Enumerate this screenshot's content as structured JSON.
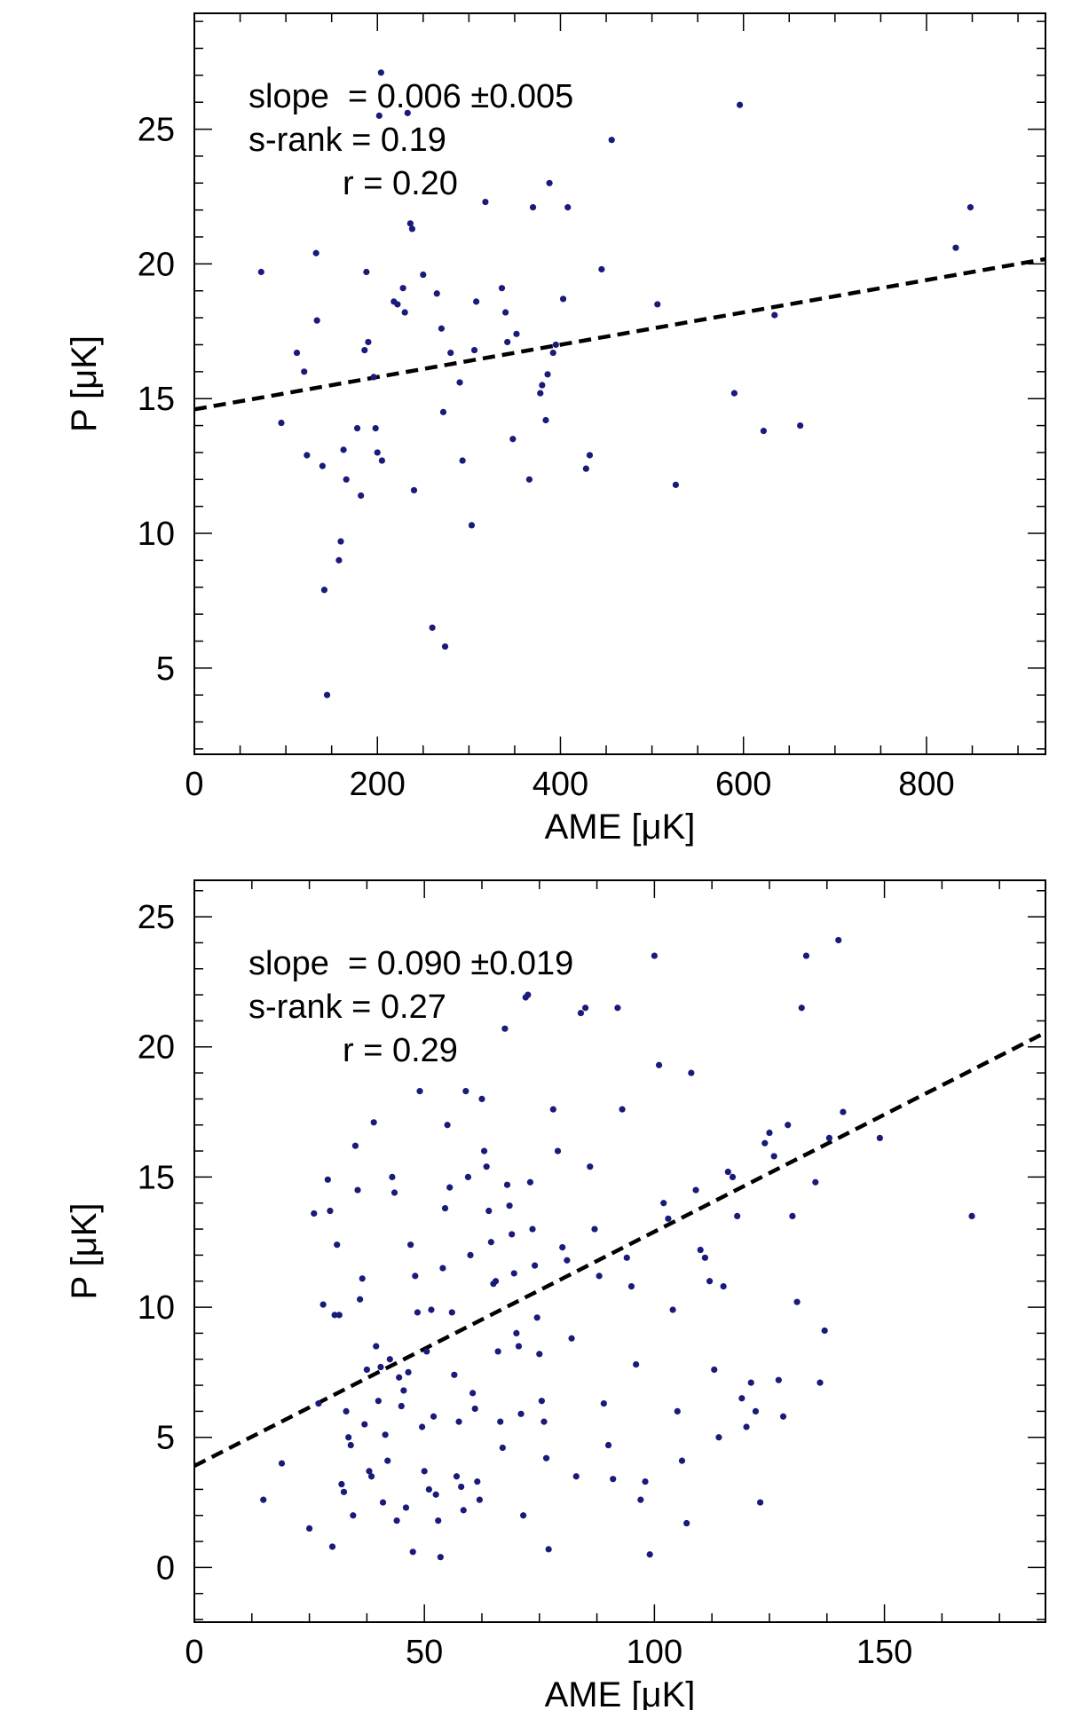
{
  "chart_data": [
    {
      "type": "scatter",
      "xlabel": "AME [μK]",
      "ylabel": "P [μK]",
      "xlim": [
        0,
        930
      ],
      "ylim": [
        1.8,
        29.3
      ],
      "xticks": [
        0,
        200,
        400,
        600,
        800
      ],
      "yticks": [
        5,
        10,
        15,
        20,
        25
      ],
      "annotations": [
        "slope  = 0.006 ±0.005",
        "s-rank = 0.19",
        "r = 0.20"
      ],
      "fit": {
        "slope": 0.006,
        "slope_err": 0.005,
        "intercept": 14.6
      },
      "marker_color": "#1a1a7a",
      "series": [
        {
          "name": "points",
          "points": [
            [
              73,
              19.7
            ],
            [
              95,
              14.1
            ],
            [
              112,
              16.7
            ],
            [
              120,
              16.0
            ],
            [
              123,
              12.9
            ],
            [
              133,
              20.4
            ],
            [
              134,
              17.9
            ],
            [
              140,
              12.5
            ],
            [
              142,
              7.9
            ],
            [
              145,
              4.0
            ],
            [
              158,
              9.0
            ],
            [
              160,
              9.7
            ],
            [
              163,
              13.1
            ],
            [
              166,
              12.0
            ],
            [
              178,
              13.9
            ],
            [
              182,
              11.4
            ],
            [
              186,
              16.8
            ],
            [
              188,
              19.7
            ],
            [
              190,
              17.1
            ],
            [
              196,
              15.8
            ],
            [
              198,
              13.9
            ],
            [
              200,
              13.0
            ],
            [
              202,
              25.5
            ],
            [
              204,
              27.1
            ],
            [
              205,
              12.7
            ],
            [
              218,
              18.6
            ],
            [
              222,
              18.5
            ],
            [
              228,
              19.1
            ],
            [
              230,
              18.2
            ],
            [
              233,
              25.6
            ],
            [
              236,
              21.5
            ],
            [
              238,
              21.3
            ],
            [
              240,
              11.6
            ],
            [
              250,
              19.6
            ],
            [
              260,
              6.5
            ],
            [
              265,
              18.9
            ],
            [
              270,
              17.6
            ],
            [
              272,
              14.5
            ],
            [
              274,
              5.8
            ],
            [
              280,
              16.7
            ],
            [
              290,
              15.6
            ],
            [
              293,
              12.7
            ],
            [
              303,
              10.3
            ],
            [
              306,
              16.8
            ],
            [
              308,
              18.6
            ],
            [
              318,
              22.3
            ],
            [
              336,
              19.1
            ],
            [
              340,
              18.2
            ],
            [
              342,
              17.1
            ],
            [
              348,
              13.5
            ],
            [
              352,
              17.4
            ],
            [
              366,
              12.0
            ],
            [
              370,
              22.1
            ],
            [
              378,
              15.2
            ],
            [
              380,
              15.5
            ],
            [
              384,
              14.2
            ],
            [
              386,
              15.9
            ],
            [
              388,
              23.0
            ],
            [
              392,
              16.7
            ],
            [
              395,
              17.0
            ],
            [
              403,
              18.7
            ],
            [
              408,
              22.1
            ],
            [
              428,
              12.4
            ],
            [
              432,
              12.9
            ],
            [
              445,
              19.8
            ],
            [
              456,
              24.6
            ],
            [
              506,
              18.5
            ],
            [
              526,
              11.8
            ],
            [
              590,
              15.2
            ],
            [
              596,
              25.9
            ],
            [
              622,
              13.8
            ],
            [
              634,
              18.1
            ],
            [
              662,
              14.0
            ],
            [
              832,
              20.6
            ],
            [
              848,
              22.1
            ]
          ]
        }
      ]
    },
    {
      "type": "scatter",
      "xlabel": "AME [μK]",
      "ylabel": "P [μK]",
      "xlim": [
        0,
        185
      ],
      "ylim": [
        -2.1,
        26.4
      ],
      "xticks": [
        0,
        50,
        100,
        150
      ],
      "yticks": [
        0,
        5,
        10,
        15,
        20,
        25
      ],
      "annotations": [
        "slope  = 0.090 ±0.019",
        "s-rank = 0.27",
        "r = 0.29"
      ],
      "fit": {
        "slope": 0.09,
        "slope_err": 0.019,
        "intercept": 3.9
      },
      "marker_color": "#1a1a7a",
      "series": [
        {
          "name": "points",
          "points": [
            [
              15,
              2.6
            ],
            [
              19,
              4.0
            ],
            [
              25,
              1.5
            ],
            [
              26,
              13.6
            ],
            [
              27,
              6.3
            ],
            [
              28,
              10.1
            ],
            [
              29,
              14.9
            ],
            [
              29.5,
              13.7
            ],
            [
              30,
              0.8
            ],
            [
              30.5,
              9.7
            ],
            [
              31,
              12.4
            ],
            [
              31.5,
              9.7
            ],
            [
              32,
              3.2
            ],
            [
              32.5,
              2.9
            ],
            [
              33,
              6.0
            ],
            [
              33.5,
              5.0
            ],
            [
              34,
              4.7
            ],
            [
              34.5,
              2.0
            ],
            [
              35,
              16.2
            ],
            [
              35.5,
              14.5
            ],
            [
              36,
              10.3
            ],
            [
              36.5,
              11.1
            ],
            [
              37,
              5.5
            ],
            [
              37.5,
              7.6
            ],
            [
              38,
              3.7
            ],
            [
              38.5,
              3.5
            ],
            [
              39,
              17.1
            ],
            [
              39.5,
              8.5
            ],
            [
              40,
              6.4
            ],
            [
              40.5,
              7.7
            ],
            [
              41,
              2.5
            ],
            [
              41.5,
              5.1
            ],
            [
              42,
              4.1
            ],
            [
              42.5,
              8.0
            ],
            [
              43,
              15.0
            ],
            [
              43.5,
              14.4
            ],
            [
              44,
              1.8
            ],
            [
              44.5,
              7.3
            ],
            [
              45,
              6.2
            ],
            [
              45.5,
              6.8
            ],
            [
              46,
              2.3
            ],
            [
              46.5,
              7.5
            ],
            [
              47,
              12.4
            ],
            [
              47.5,
              0.6
            ],
            [
              48,
              11.2
            ],
            [
              48.5,
              9.8
            ],
            [
              49,
              18.3
            ],
            [
              49.5,
              5.4
            ],
            [
              50,
              3.7
            ],
            [
              50.5,
              8.3
            ],
            [
              51,
              3.0
            ],
            [
              51.5,
              9.9
            ],
            [
              52,
              5.8
            ],
            [
              52.5,
              2.8
            ],
            [
              53,
              1.8
            ],
            [
              53.5,
              0.4
            ],
            [
              54,
              11.5
            ],
            [
              54.5,
              13.8
            ],
            [
              55,
              17.0
            ],
            [
              55.5,
              14.6
            ],
            [
              56,
              9.8
            ],
            [
              56.5,
              7.4
            ],
            [
              57,
              3.5
            ],
            [
              57.5,
              5.6
            ],
            [
              58,
              3.1
            ],
            [
              58.5,
              2.2
            ],
            [
              59,
              18.3
            ],
            [
              59.5,
              15.0
            ],
            [
              60,
              12.0
            ],
            [
              60.5,
              6.7
            ],
            [
              61,
              6.1
            ],
            [
              61.5,
              3.3
            ],
            [
              62,
              2.6
            ],
            [
              62.5,
              18.0
            ],
            [
              63,
              16.0
            ],
            [
              63.5,
              15.4
            ],
            [
              64,
              13.7
            ],
            [
              64.5,
              12.5
            ],
            [
              65,
              10.9
            ],
            [
              65.5,
              11.0
            ],
            [
              66,
              8.3
            ],
            [
              66.5,
              5.6
            ],
            [
              67,
              4.6
            ],
            [
              67.5,
              20.7
            ],
            [
              68,
              14.7
            ],
            [
              68.5,
              13.9
            ],
            [
              69,
              12.8
            ],
            [
              69.5,
              11.3
            ],
            [
              70,
              9.0
            ],
            [
              70.5,
              8.5
            ],
            [
              71,
              5.9
            ],
            [
              71.5,
              2.0
            ],
            [
              72,
              21.9
            ],
            [
              72.5,
              22.0
            ],
            [
              73,
              14.8
            ],
            [
              73.5,
              13.0
            ],
            [
              74,
              11.6
            ],
            [
              74.5,
              9.6
            ],
            [
              75,
              8.2
            ],
            [
              75.5,
              6.4
            ],
            [
              76,
              5.6
            ],
            [
              76.5,
              4.2
            ],
            [
              77,
              0.7
            ],
            [
              78,
              17.6
            ],
            [
              79,
              16.0
            ],
            [
              80,
              12.3
            ],
            [
              81,
              11.8
            ],
            [
              82,
              8.8
            ],
            [
              83,
              3.5
            ],
            [
              84,
              21.3
            ],
            [
              85,
              21.5
            ],
            [
              86,
              15.4
            ],
            [
              87,
              13.0
            ],
            [
              88,
              11.2
            ],
            [
              89,
              6.3
            ],
            [
              90,
              4.7
            ],
            [
              91,
              3.4
            ],
            [
              92,
              21.5
            ],
            [
              93,
              17.6
            ],
            [
              94,
              11.9
            ],
            [
              95,
              10.8
            ],
            [
              96,
              7.8
            ],
            [
              97,
              2.6
            ],
            [
              98,
              3.3
            ],
            [
              99,
              0.5
            ],
            [
              100,
              23.5
            ],
            [
              101,
              19.3
            ],
            [
              102,
              14.0
            ],
            [
              103,
              13.4
            ],
            [
              104,
              9.9
            ],
            [
              105,
              6.0
            ],
            [
              106,
              4.1
            ],
            [
              107,
              1.7
            ],
            [
              108,
              19.0
            ],
            [
              109,
              14.5
            ],
            [
              110,
              12.2
            ],
            [
              111,
              11.9
            ],
            [
              112,
              11.0
            ],
            [
              113,
              7.6
            ],
            [
              114,
              5.0
            ],
            [
              115,
              10.8
            ],
            [
              116,
              15.2
            ],
            [
              117,
              15.0
            ],
            [
              118,
              13.5
            ],
            [
              119,
              6.5
            ],
            [
              120,
              5.4
            ],
            [
              121,
              7.1
            ],
            [
              122,
              6.0
            ],
            [
              123,
              2.5
            ],
            [
              124,
              16.3
            ],
            [
              125,
              16.7
            ],
            [
              126,
              15.8
            ],
            [
              127,
              7.2
            ],
            [
              128,
              5.8
            ],
            [
              129,
              17.0
            ],
            [
              130,
              13.5
            ],
            [
              131,
              10.2
            ],
            [
              132,
              21.5
            ],
            [
              133,
              23.5
            ],
            [
              135,
              14.8
            ],
            [
              136,
              7.1
            ],
            [
              137,
              9.1
            ],
            [
              138,
              16.5
            ],
            [
              140,
              24.1
            ],
            [
              141,
              17.5
            ],
            [
              149,
              16.5
            ],
            [
              169,
              13.5
            ]
          ]
        }
      ]
    }
  ]
}
